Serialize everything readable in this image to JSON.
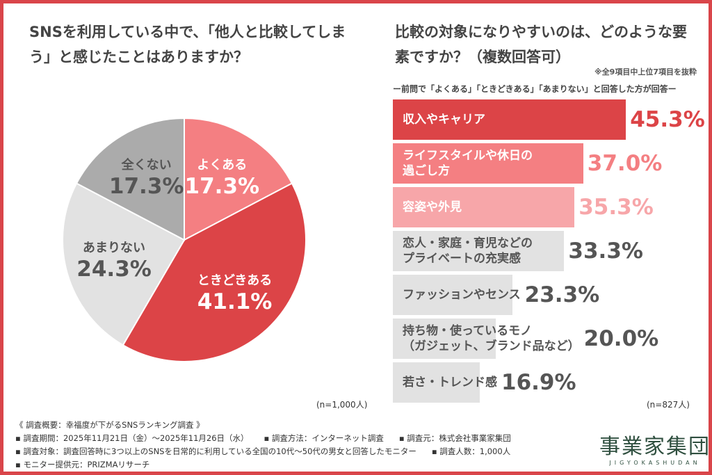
{
  "chart_data": [
    {
      "type": "pie",
      "title": "SNSを利用している中で、「他人と比較してしまう」と感じたことはありますか？",
      "slices": [
        {
          "label": "よくある",
          "value": 17.3,
          "display": "17.3%",
          "color": "#f47f82",
          "text_color": "#ffffff"
        },
        {
          "label": "ときどきある",
          "value": 41.1,
          "display": "41.1%",
          "color": "#dc4447",
          "text_color": "#ffffff"
        },
        {
          "label": "あまりない",
          "value": 24.3,
          "display": "24.3%",
          "color": "#e2e2e2",
          "text_color": "#555555"
        },
        {
          "label": "全くない",
          "value": 17.3,
          "display": "17.3%",
          "color": "#ababab",
          "text_color": "#555555"
        }
      ],
      "n_label": "(n=1,000人)"
    },
    {
      "type": "bar",
      "orientation": "horizontal",
      "title": "比較の対象になりやすいのは、どのような要素ですか？（複数回答可）",
      "note": "※全9項目中上位7項目を抜粋",
      "subtitle": "ー前問で「よくある」「ときどきある」「あまりない」と回答した方が回答ー",
      "categories": [
        "収入やキャリア",
        "ライフスタイルや休日の\n過ごし方",
        "容姿や外見",
        "恋人・家庭・育児などの\nプライベートの充実感",
        "ファッションやセンス",
        "持ち物・使っているモノ\n（ガジェット、ブランド品など）",
        "若さ・トレンド感"
      ],
      "values": [
        45.3,
        37.0,
        35.3,
        33.3,
        23.3,
        20.0,
        16.9
      ],
      "labels": [
        "45.3%",
        "37.0%",
        "35.3%",
        "33.3%",
        "23.3%",
        "20.0%",
        "16.9%"
      ],
      "bar_colors": [
        "#dc4447",
        "#f47f82",
        "#f7a6a9",
        "#e2e2e2",
        "#e2e2e2",
        "#e2e2e2",
        "#e2e2e2"
      ],
      "label_colors": [
        "#ffffff",
        "#ffffff",
        "#ffffff",
        "#555555",
        "#555555",
        "#555555",
        "#555555"
      ],
      "value_colors": [
        "#dc4447",
        "#f47f82",
        "#f7a6a9",
        "#555555",
        "#555555",
        "#555555",
        "#555555"
      ],
      "n_label": "(n=827人)"
    }
  ],
  "footer": {
    "lines": [
      "《 調査概要：幸福度が下がるSNSランキング調査 》",
      "▪ 調査期間：2025年11月21日（金）～2025年11月26日（水）      ▪ 調査方法：インターネット調査      ▪ 調査元：株式会社事業家集団",
      "▪ 調査対象：調査回答時に3つ以上のSNSを日常的に利用している全国の10代～50代の男女と回答したモニター      ▪ 調査人数：1,000人",
      "▪ モニター提供元：PRIZMAリサーチ"
    ]
  },
  "logo": {
    "kanji": "事業家集団",
    "roman": "JIGYOKASHUDAN"
  }
}
